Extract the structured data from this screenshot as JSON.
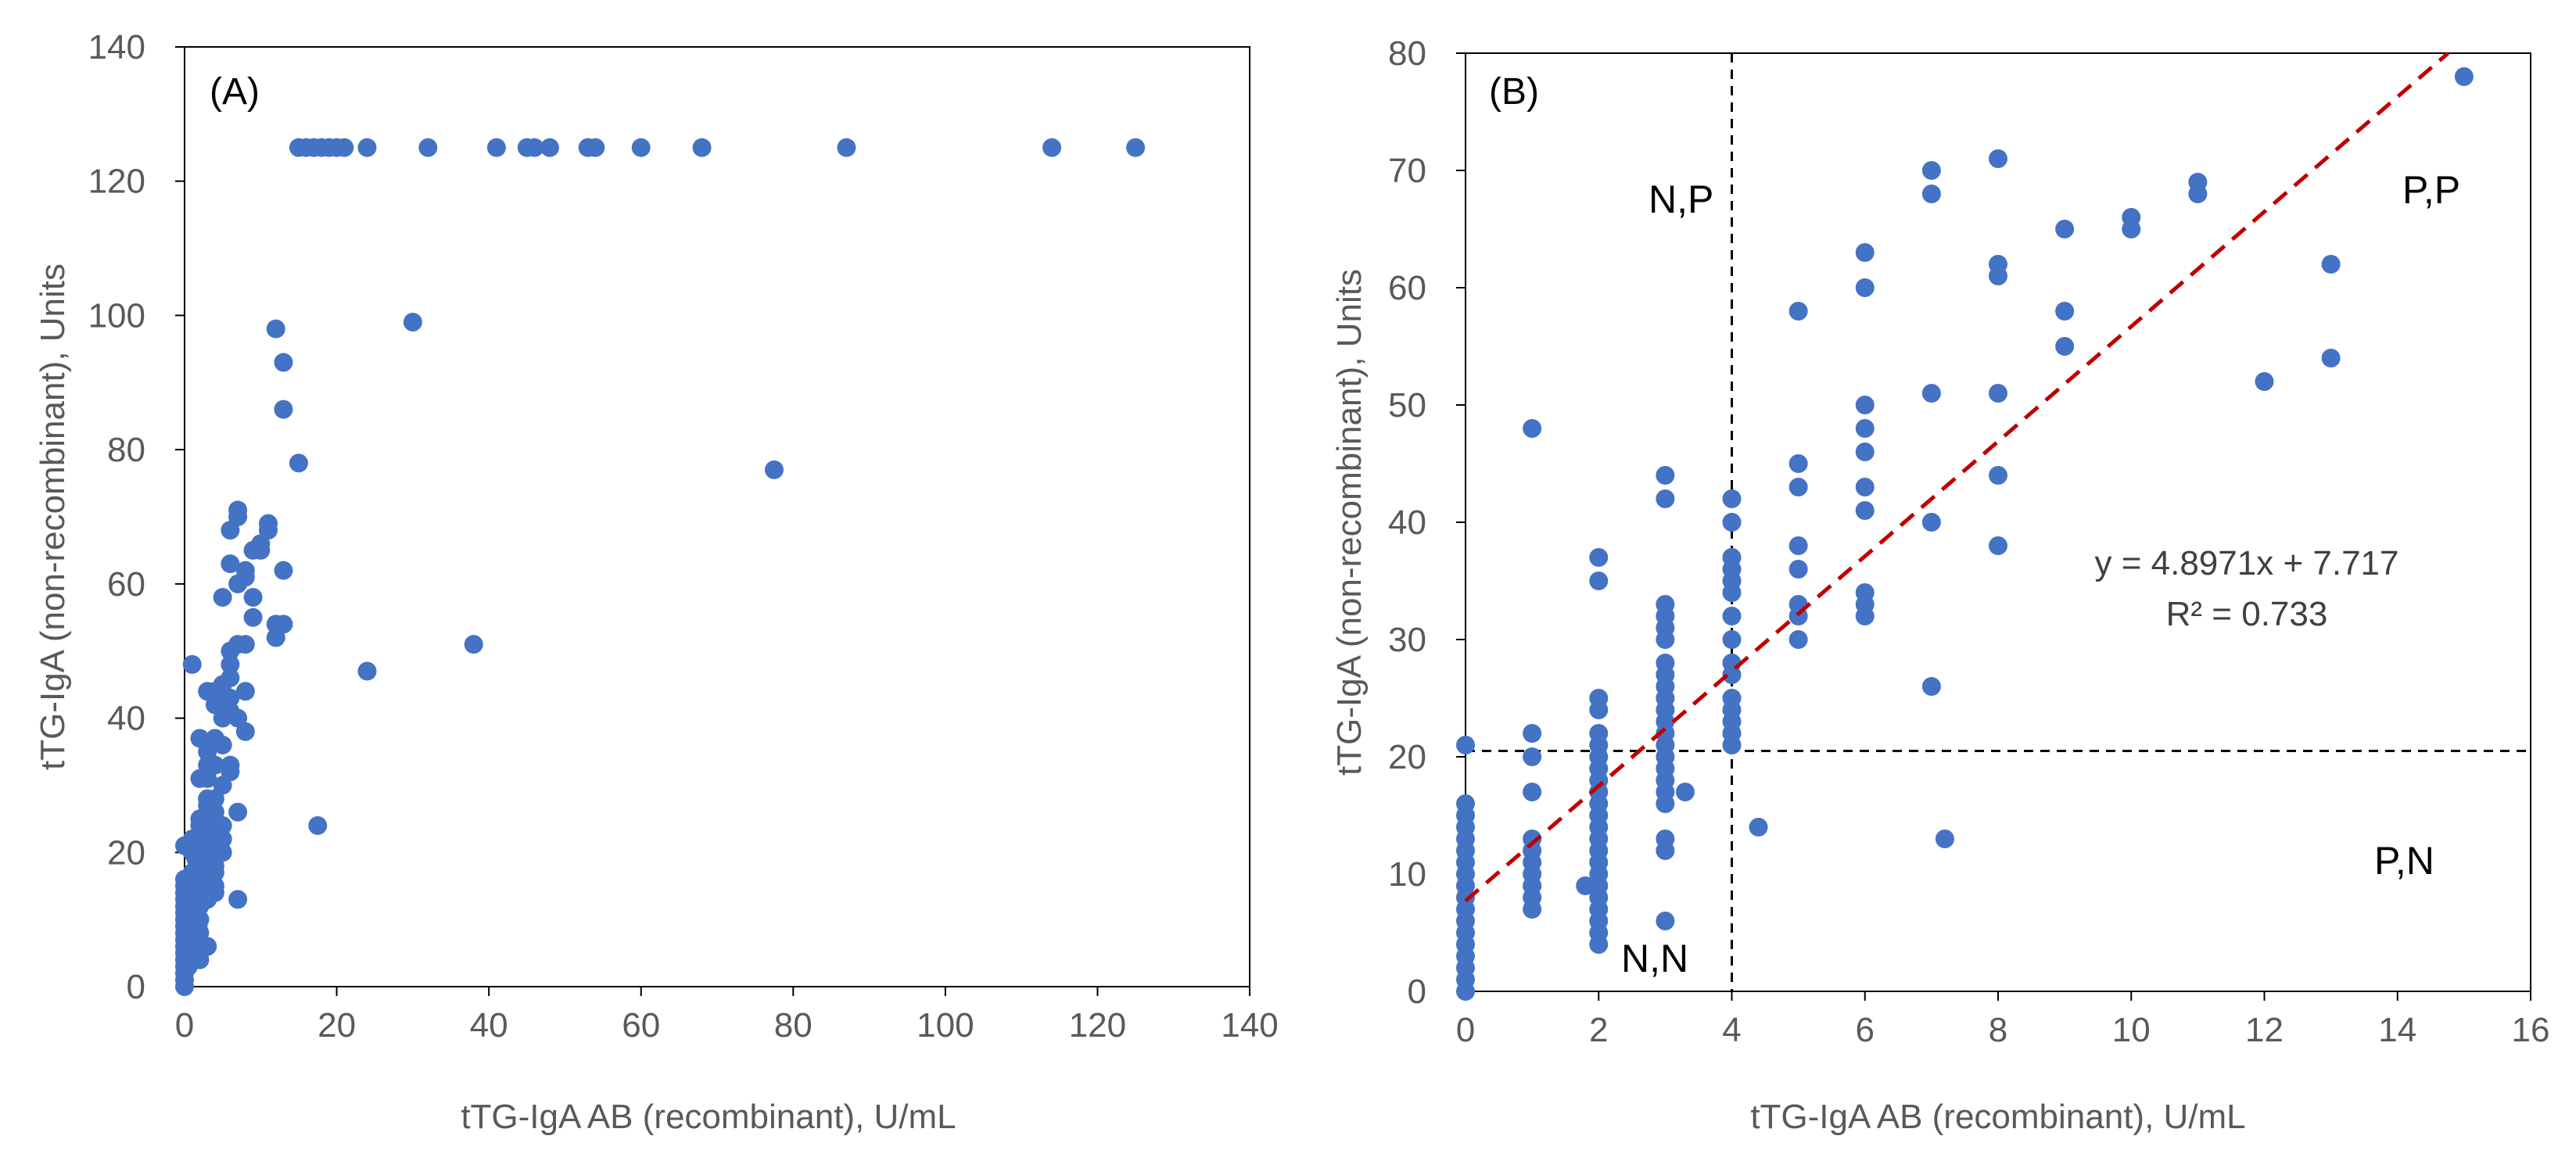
{
  "chart_data": [
    {
      "type": "scatter",
      "panel_label": "(A)",
      "xlabel": "tTG-IgA AB (recombinant), U/mL",
      "ylabel": "tTG-IgA (non-recombinant), Units",
      "xlim": [
        0,
        140
      ],
      "ylim": [
        0,
        140
      ],
      "xticks": [
        0,
        20,
        40,
        60,
        80,
        100,
        120,
        140
      ],
      "yticks": [
        0,
        20,
        40,
        60,
        80,
        100,
        120,
        140
      ],
      "marker_color": "#4472C4",
      "points": [
        [
          15,
          125
        ],
        [
          16,
          125
        ],
        [
          17,
          125
        ],
        [
          18,
          125
        ],
        [
          19,
          125
        ],
        [
          20,
          125
        ],
        [
          21,
          125
        ],
        [
          24,
          125
        ],
        [
          32,
          125
        ],
        [
          41,
          125
        ],
        [
          45,
          125
        ],
        [
          46,
          125
        ],
        [
          48,
          125
        ],
        [
          53,
          125
        ],
        [
          54,
          125
        ],
        [
          60,
          125
        ],
        [
          68,
          125
        ],
        [
          87,
          125
        ],
        [
          114,
          125
        ],
        [
          125,
          125
        ],
        [
          12,
          98
        ],
        [
          13,
          93
        ],
        [
          13,
          86
        ],
        [
          30,
          99
        ],
        [
          15,
          78
        ],
        [
          77.5,
          77
        ],
        [
          38,
          51
        ],
        [
          24,
          47
        ],
        [
          17.5,
          24
        ],
        [
          7,
          71
        ],
        [
          11,
          69
        ],
        [
          11,
          68
        ],
        [
          7,
          70
        ],
        [
          6,
          68
        ],
        [
          10,
          66
        ],
        [
          9,
          65
        ],
        [
          10,
          65
        ],
        [
          8,
          62
        ],
        [
          13,
          62
        ],
        [
          8,
          61
        ],
        [
          6,
          63
        ],
        [
          7,
          60
        ],
        [
          5,
          58
        ],
        [
          9,
          58
        ],
        [
          9,
          55
        ],
        [
          12,
          54
        ],
        [
          13,
          54
        ],
        [
          12,
          52
        ],
        [
          7,
          51
        ],
        [
          8,
          51
        ],
        [
          6,
          50
        ],
        [
          6,
          48
        ],
        [
          6,
          46
        ],
        [
          5,
          45
        ],
        [
          6,
          43
        ],
        [
          5,
          43
        ],
        [
          6,
          41
        ],
        [
          7,
          40
        ],
        [
          8,
          44
        ],
        [
          8,
          38
        ],
        [
          7,
          26
        ],
        [
          7,
          13
        ],
        [
          4,
          44
        ],
        [
          3,
          44
        ],
        [
          4,
          42
        ],
        [
          5,
          40
        ],
        [
          4,
          37
        ],
        [
          3,
          35
        ],
        [
          2,
          37
        ],
        [
          5,
          36
        ],
        [
          4,
          33
        ],
        [
          3,
          33
        ],
        [
          6,
          33
        ],
        [
          6,
          32
        ],
        [
          3,
          31
        ],
        [
          5,
          30
        ],
        [
          2,
          31
        ],
        [
          1,
          48
        ],
        [
          0,
          21
        ],
        [
          1,
          22
        ],
        [
          1,
          20
        ],
        [
          0,
          16
        ],
        [
          1,
          17
        ],
        [
          2,
          25
        ],
        [
          2,
          24
        ],
        [
          3,
          28
        ],
        [
          3,
          27
        ],
        [
          4,
          28
        ],
        [
          4,
          26
        ],
        [
          3,
          23
        ],
        [
          2,
          22
        ],
        [
          3,
          21
        ],
        [
          5,
          22
        ],
        [
          4,
          21
        ],
        [
          3,
          20
        ],
        [
          4,
          24
        ],
        [
          2,
          20
        ],
        [
          5,
          24
        ],
        [
          5,
          20
        ],
        [
          0,
          15
        ],
        [
          0,
          14
        ],
        [
          0,
          13
        ],
        [
          0,
          12
        ],
        [
          0,
          11
        ],
        [
          0,
          10
        ],
        [
          0,
          9
        ],
        [
          0,
          8
        ],
        [
          0,
          7
        ],
        [
          0,
          6
        ],
        [
          0,
          5
        ],
        [
          0,
          4
        ],
        [
          0,
          3
        ],
        [
          0,
          2
        ],
        [
          0,
          1
        ],
        [
          0,
          0
        ],
        [
          1,
          13
        ],
        [
          1,
          12
        ],
        [
          1,
          11
        ],
        [
          1,
          10
        ],
        [
          1,
          9
        ],
        [
          1,
          8
        ],
        [
          1,
          7
        ],
        [
          2,
          15
        ],
        [
          2,
          14
        ],
        [
          2,
          12
        ],
        [
          2,
          10
        ],
        [
          2,
          8
        ],
        [
          2,
          6
        ],
        [
          2,
          5
        ],
        [
          2,
          4
        ],
        [
          3,
          18
        ],
        [
          3,
          17
        ],
        [
          3,
          16
        ],
        [
          3,
          13
        ],
        [
          3,
          6
        ],
        [
          4,
          19
        ],
        [
          4,
          18
        ],
        [
          4,
          17
        ],
        [
          4,
          15
        ],
        [
          4,
          14
        ],
        [
          1.8,
          9
        ],
        [
          3.3,
          17
        ],
        [
          0.5,
          3
        ],
        [
          0.5,
          6
        ],
        [
          1.5,
          15
        ],
        [
          1.5,
          19
        ]
      ]
    },
    {
      "type": "scatter",
      "panel_label": "(B)",
      "xlabel": "tTG-IgA AB (recombinant), U/mL",
      "ylabel": "tTG-IgA (non-recombinant), Units",
      "xlim": [
        0,
        16
      ],
      "ylim": [
        0,
        80
      ],
      "xticks": [
        0,
        2,
        4,
        6,
        8,
        10,
        12,
        14,
        16
      ],
      "yticks": [
        0,
        10,
        20,
        30,
        40,
        50,
        60,
        70,
        80
      ],
      "marker_color": "#4472C4",
      "trendline": {
        "slope": 4.8971,
        "intercept": 7.717,
        "color": "#C00000",
        "equation": "y = 4.8971x + 7.717",
        "r2": "R² = 0.733"
      },
      "cutoffs": {
        "x": 4,
        "y": 20.5
      },
      "quadrant_labels": {
        "np": "N,P",
        "pp": "P,P",
        "nn": "N,N",
        "pn": "P,N"
      },
      "points": [
        [
          0,
          21
        ],
        [
          0,
          16
        ],
        [
          0,
          15
        ],
        [
          0,
          14
        ],
        [
          0,
          13
        ],
        [
          0,
          12
        ],
        [
          0,
          11
        ],
        [
          0,
          10
        ],
        [
          0,
          9
        ],
        [
          0,
          8
        ],
        [
          0,
          7
        ],
        [
          0,
          6
        ],
        [
          0,
          5
        ],
        [
          0,
          4
        ],
        [
          0,
          3
        ],
        [
          0,
          2
        ],
        [
          0,
          1
        ],
        [
          0,
          0
        ],
        [
          1,
          48
        ],
        [
          1,
          22
        ],
        [
          1,
          20
        ],
        [
          1,
          17
        ],
        [
          1,
          13
        ],
        [
          1,
          12
        ],
        [
          1,
          11
        ],
        [
          1,
          10
        ],
        [
          1,
          9
        ],
        [
          1,
          8
        ],
        [
          1,
          7
        ],
        [
          2,
          37
        ],
        [
          2,
          35
        ],
        [
          2,
          25
        ],
        [
          2,
          24
        ],
        [
          2,
          22
        ],
        [
          2,
          21
        ],
        [
          2,
          20
        ],
        [
          2,
          19
        ],
        [
          2,
          18
        ],
        [
          2,
          17
        ],
        [
          2,
          16
        ],
        [
          2,
          15
        ],
        [
          2,
          14
        ],
        [
          2,
          13
        ],
        [
          2,
          12
        ],
        [
          2,
          11
        ],
        [
          2,
          10
        ],
        [
          2,
          9
        ],
        [
          2,
          8
        ],
        [
          2,
          7
        ],
        [
          2,
          6
        ],
        [
          2,
          5
        ],
        [
          2,
          4
        ],
        [
          1.8,
          9
        ],
        [
          3,
          44
        ],
        [
          3,
          42
        ],
        [
          3,
          33
        ],
        [
          3,
          32
        ],
        [
          3,
          31
        ],
        [
          3,
          30
        ],
        [
          3,
          28
        ],
        [
          3,
          27
        ],
        [
          3,
          26
        ],
        [
          3,
          25
        ],
        [
          3,
          24
        ],
        [
          3,
          23
        ],
        [
          3,
          22
        ],
        [
          3,
          21
        ],
        [
          3,
          20
        ],
        [
          3,
          19
        ],
        [
          3,
          18
        ],
        [
          3,
          17
        ],
        [
          3,
          16
        ],
        [
          3,
          13
        ],
        [
          3,
          12
        ],
        [
          3,
          6
        ],
        [
          3.3,
          17
        ],
        [
          4,
          42
        ],
        [
          4,
          40
        ],
        [
          4,
          37
        ],
        [
          4,
          36
        ],
        [
          4,
          35
        ],
        [
          4,
          34
        ],
        [
          4,
          32
        ],
        [
          4,
          30
        ],
        [
          4,
          28
        ],
        [
          4,
          27
        ],
        [
          4,
          25
        ],
        [
          4,
          24
        ],
        [
          4,
          23
        ],
        [
          4,
          22
        ],
        [
          4,
          21
        ],
        [
          4.4,
          14
        ],
        [
          5,
          58
        ],
        [
          5,
          45
        ],
        [
          5,
          43
        ],
        [
          5,
          38
        ],
        [
          5,
          36
        ],
        [
          5,
          33
        ],
        [
          5,
          32
        ],
        [
          5,
          30
        ],
        [
          6,
          63
        ],
        [
          6,
          60
        ],
        [
          6,
          50
        ],
        [
          6,
          48
        ],
        [
          6,
          46
        ],
        [
          6,
          43
        ],
        [
          6,
          41
        ],
        [
          6,
          34
        ],
        [
          6,
          33
        ],
        [
          6,
          32
        ],
        [
          7,
          70
        ],
        [
          7,
          68
        ],
        [
          7,
          51
        ],
        [
          7,
          40
        ],
        [
          7,
          26
        ],
        [
          7.2,
          13
        ],
        [
          8,
          71
        ],
        [
          8,
          62
        ],
        [
          8,
          61
        ],
        [
          8,
          51
        ],
        [
          8,
          44
        ],
        [
          8,
          38
        ],
        [
          9,
          65
        ],
        [
          9,
          58
        ],
        [
          9,
          55
        ],
        [
          10,
          66
        ],
        [
          10,
          65
        ],
        [
          11,
          69
        ],
        [
          11,
          68
        ],
        [
          12,
          52
        ],
        [
          13,
          62
        ],
        [
          13,
          54
        ],
        [
          15,
          78
        ]
      ]
    }
  ]
}
